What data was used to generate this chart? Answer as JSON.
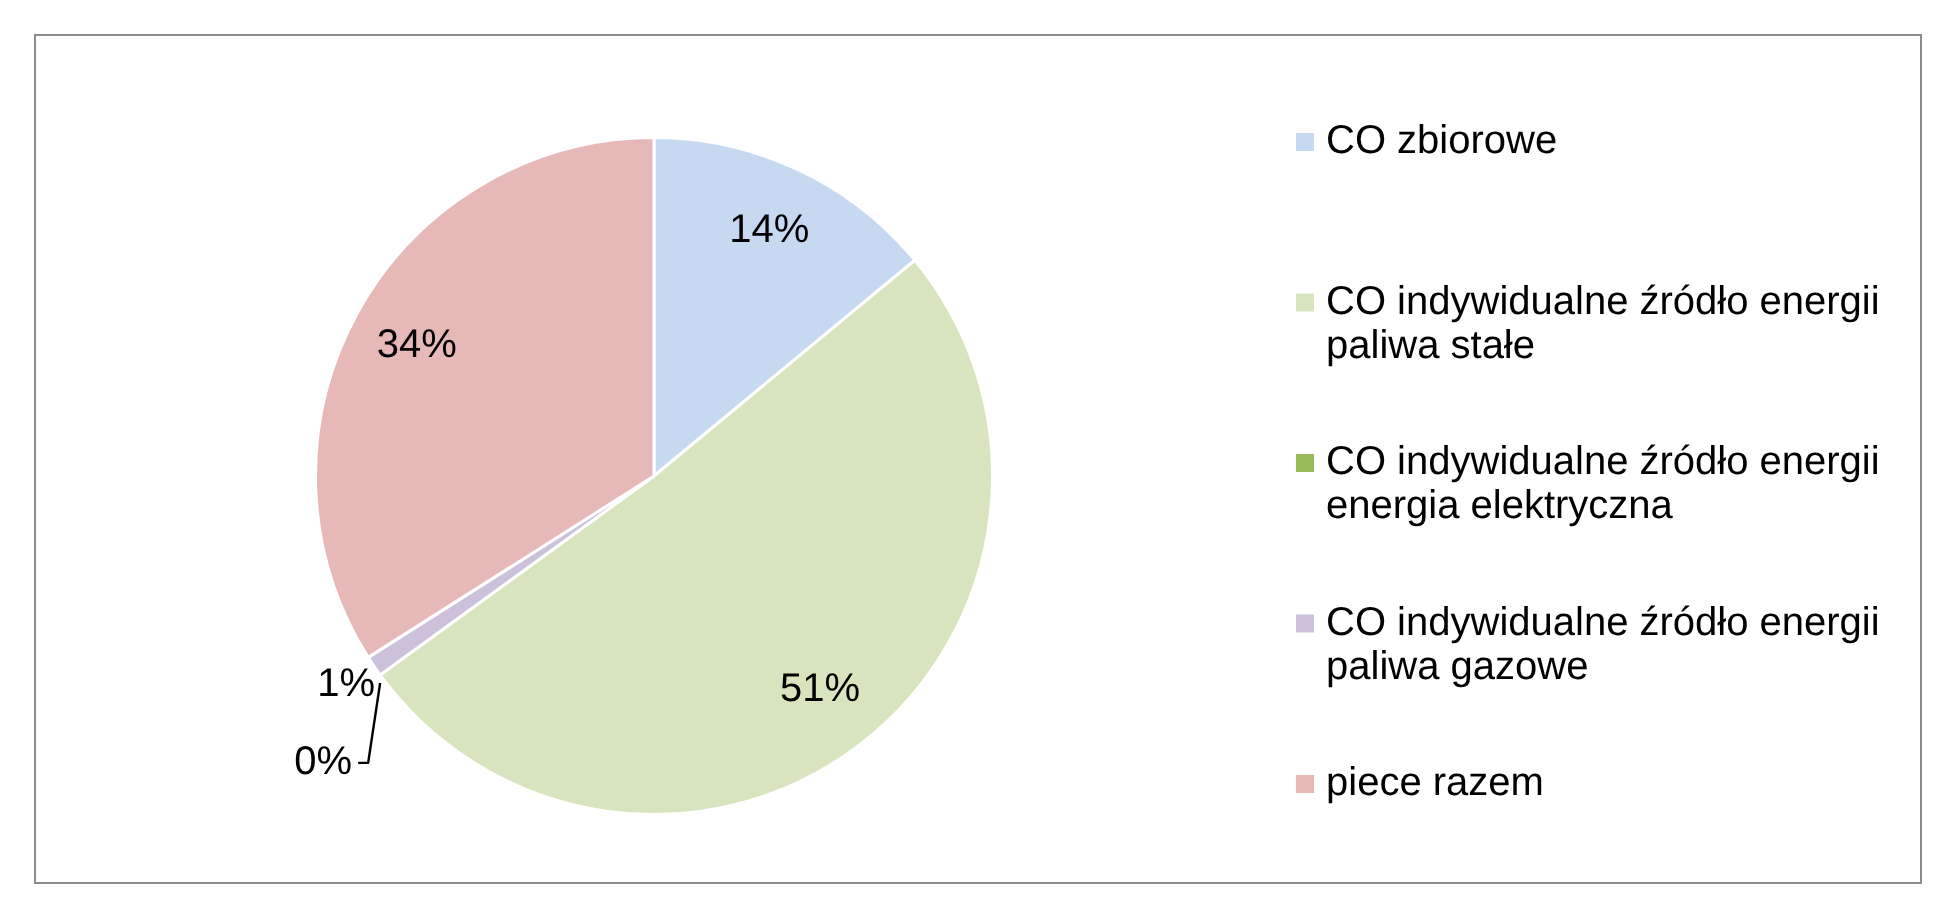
{
  "chart_data": {
    "type": "pie",
    "categories": [
      "CO zbiorowe",
      "CO indywidualne źródło energii paliwa stałe",
      "CO indywidualne źródło energii energia elektryczna",
      "CO indywidualne źródło energii paliwa gazowe",
      "piece razem"
    ],
    "values": [
      14,
      51,
      0,
      1,
      34
    ],
    "colors": [
      "#c6d9f1",
      "#d7e4bd",
      "#9bbb59",
      "#ccc1da",
      "#e6b9b8"
    ],
    "value_labels": [
      "14%",
      "51%",
      "0%",
      "1%",
      "34%"
    ],
    "legend": "right"
  }
}
